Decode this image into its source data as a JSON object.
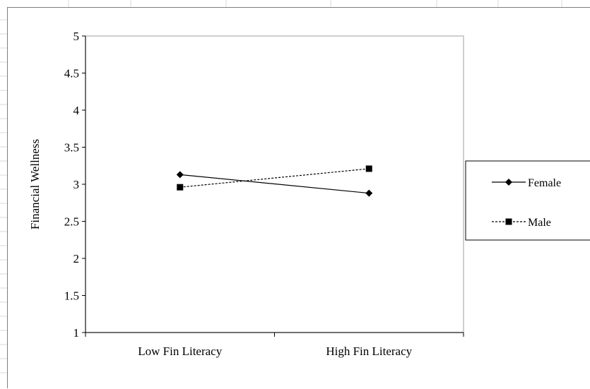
{
  "chart_data": {
    "type": "line",
    "title": "",
    "xlabel": "",
    "ylabel": "Financial Wellness",
    "categories": [
      "Low Fin Literacy",
      "High Fin Literacy"
    ],
    "ylim": [
      1,
      5
    ],
    "yticks": [
      "1",
      "1.5",
      "2",
      "2.5",
      "3",
      "3.5",
      "4",
      "4.5",
      "5"
    ],
    "grid": false,
    "legend_position": "right",
    "series": [
      {
        "name": "Female",
        "values": [
          3.13,
          2.88
        ],
        "marker": "diamond",
        "line_style": "solid",
        "color": "#000000"
      },
      {
        "name": "Male",
        "values": [
          2.96,
          3.21
        ],
        "marker": "square",
        "line_style": "dashed",
        "color": "#000000"
      }
    ]
  },
  "colors": {
    "background": "#ffffff",
    "plot_border": "#bfbfbf",
    "axis": "#000000",
    "sheet_grid": "#d9d9d9"
  }
}
